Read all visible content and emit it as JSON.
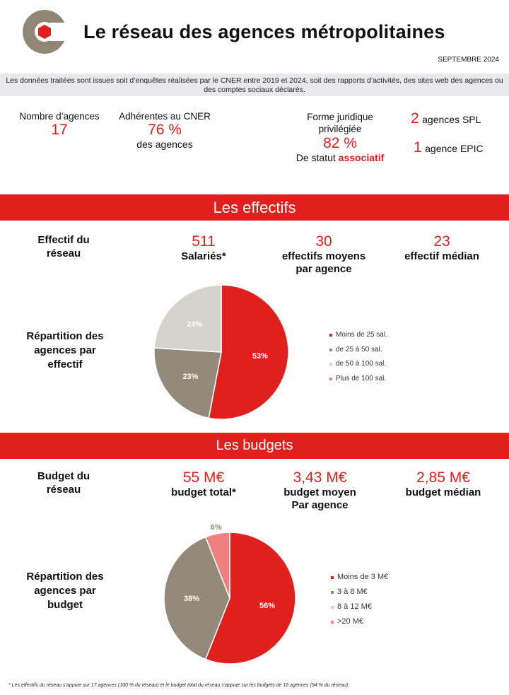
{
  "header": {
    "title": "Le réseau des agences métropolitaines",
    "date": "SEPTEMBRE 2024"
  },
  "notice": "Les données traitées sont issues soit d’enquêtes réalisées par le CNER entre 2019 et 2024, soit des rapports d’activités, des sites web des agences ou des comptes sociaux déclarés.",
  "kpis": {
    "agencies_label": "Nombre d’agences",
    "agencies_value": "17",
    "members_label": "Adhérentes au CNER",
    "members_value": "76 %",
    "members_sub": "des agences",
    "legal_label": "Forme juridique privilégiée",
    "legal_value": "82 %",
    "legal_sub_prefix": "De statut",
    "legal_sub_highlight": "associatif",
    "spl_value": "2",
    "spl_label": "agences SPL",
    "epic_value": "1",
    "epic_label": "agence EPIC"
  },
  "effectifs": {
    "banner": "Les effectifs",
    "row_label": "Effectif du réseau",
    "total_value": "511",
    "total_label": "Salariés*",
    "mean_value": "30",
    "mean_label": "effectifs moyens par agence",
    "median_value": "23",
    "median_label": "effectif médian",
    "chart_label": "Répartition des agences par effectif"
  },
  "budgets": {
    "banner": "Les budgets",
    "row_label": "Budget du réseau",
    "total_value": "55 M€",
    "total_label": "budget total*",
    "mean_value": "3,43 M€",
    "mean_label": "budget moyen Par agence",
    "median_value": "2,85 M€",
    "median_label": "budget médian",
    "chart_label": "Répartition des agences par budget"
  },
  "footnote": "* Les effectifs du réseau s’appuie sur 17 agences (100 % du réseau) et le budget total du réseau s’appuie sur les budgets de 16 agences (94 % du réseau).",
  "chart_data": [
    {
      "type": "pie",
      "title": "",
      "categories": [
        "Moins de 25 sal.",
        "de 25 à 50 sal.",
        "de 50 à 100 sal.",
        "Plus de 100 sal."
      ],
      "values": [
        53,
        23,
        24,
        0
      ],
      "labels": [
        "53%",
        "23%",
        "24%",
        ""
      ],
      "colors": [
        "#e0201c",
        "#948a7a",
        "#d5d2cc",
        "#f08080"
      ],
      "legend_position": "right"
    },
    {
      "type": "pie",
      "title": "",
      "categories": [
        "Moins de 3 M€",
        "3 à 8 M€",
        "8 à 12 M€",
        ">20 M€"
      ],
      "values": [
        56,
        38,
        0,
        6
      ],
      "labels": [
        "56%",
        "38%",
        "",
        "6%"
      ],
      "colors": [
        "#e0201c",
        "#948a7a",
        "#d5d2cc",
        "#f08080"
      ],
      "legend_position": "right"
    }
  ]
}
